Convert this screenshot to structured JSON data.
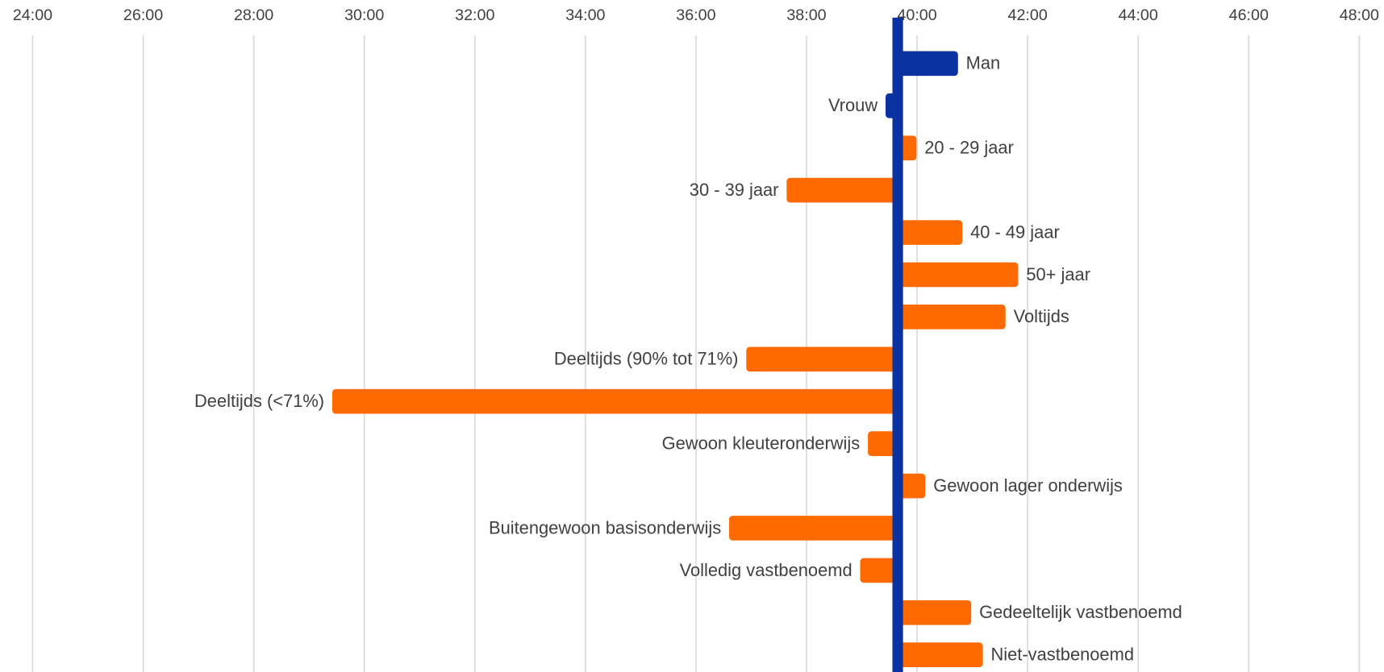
{
  "chart_data": {
    "type": "bar",
    "orientation": "horizontal",
    "categories": [
      "Man",
      "Vrouw",
      "20 - 29 jaar",
      "30 - 39 jaar",
      "40 - 49 jaar",
      "50+ jaar",
      "Voltijds",
      "Deeltijds (90% tot 71%)",
      "Deeltijds (<71%)",
      "Gewoon kleuteronderwijs",
      "Gewoon lager onderwijs",
      "Buitengewoon basisonderwijs",
      "Volledig vastbenoemd",
      "Gedeeltelijk vastbenoemd",
      "Niet-vastbenoemd"
    ],
    "values": [
      40.74,
      39.43,
      39.99,
      37.64,
      40.82,
      41.83,
      41.6,
      36.91,
      29.42,
      39.11,
      40.15,
      36.6,
      38.97,
      40.98,
      41.19
    ],
    "colors": [
      "#0a32a0",
      "#0a32a0",
      "#ff6a00",
      "#ff6a00",
      "#ff6a00",
      "#ff6a00",
      "#ff6a00",
      "#ff6a00",
      "#ff6a00",
      "#ff6a00",
      "#ff6a00",
      "#ff6a00",
      "#ff6a00",
      "#ff6a00",
      "#ff6a00"
    ],
    "baseline": 39.65,
    "baseline_color": "#0a32a0",
    "xlim": [
      24,
      48
    ],
    "xticks": [
      {
        "value": 24,
        "label": "24:00"
      },
      {
        "value": 26,
        "label": "26:00"
      },
      {
        "value": 28,
        "label": "28:00"
      },
      {
        "value": 30,
        "label": "30:00"
      },
      {
        "value": 32,
        "label": "32:00"
      },
      {
        "value": 34,
        "label": "34:00"
      },
      {
        "value": 36,
        "label": "36:00"
      },
      {
        "value": 38,
        "label": "38:00"
      },
      {
        "value": 40,
        "label": "40:00"
      },
      {
        "value": 42,
        "label": "42:00"
      },
      {
        "value": 44,
        "label": "44:00"
      },
      {
        "value": 46,
        "label": "46:00"
      },
      {
        "value": 48,
        "label": "48:00"
      }
    ],
    "grid": true
  }
}
